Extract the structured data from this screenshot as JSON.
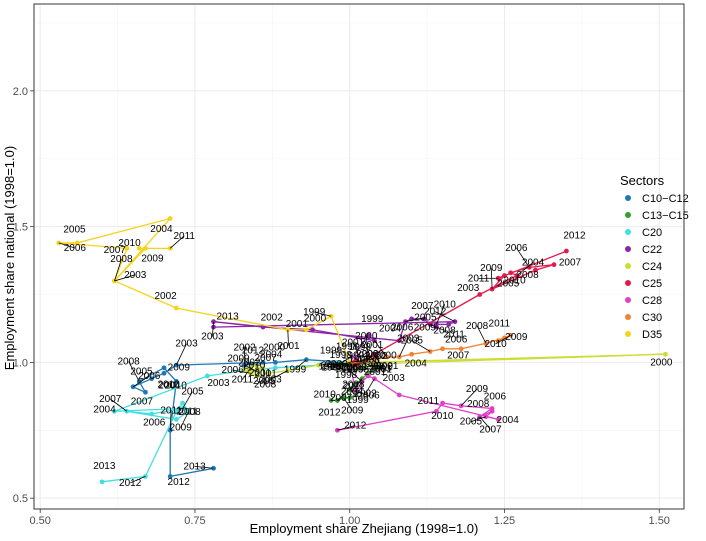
{
  "chart_data": {
    "type": "scatter",
    "title": "",
    "xlabel": "Employment share Zhejiang (1998=1.0)",
    "ylabel": "Employment share national (1998=1.0)",
    "xlim": [
      0.49,
      1.54
    ],
    "ylim": [
      0.46,
      2.32
    ],
    "x_ticks": [
      0.5,
      0.75,
      1.0,
      1.25,
      1.5
    ],
    "x_tick_labels": [
      "0.50",
      "0.75",
      "1.00",
      "1.25",
      "1.50"
    ],
    "y_ticks": [
      0.5,
      1.0,
      1.5,
      2.0
    ],
    "y_tick_labels": [
      "0.5",
      "1.0",
      "1.5",
      "2.0"
    ],
    "grid": true,
    "legend": {
      "title": "Sectors",
      "position": "right"
    },
    "series": [
      {
        "name": "C10−C12",
        "color": "#1f78b4",
        "points": [
          {
            "year": "1998",
            "x": 1.0,
            "y": 1.0
          },
          {
            "year": "1999",
            "x": 0.93,
            "y": 1.01
          },
          {
            "year": "2000",
            "x": 0.88,
            "y": 1.0
          },
          {
            "year": "2001",
            "x": 0.83,
            "y": 0.99
          },
          {
            "year": "2002",
            "x": 0.86,
            "y": 1.0
          },
          {
            "year": "2003",
            "x": 0.72,
            "y": 0.99
          },
          {
            "year": "2004",
            "x": 0.7,
            "y": 0.96
          },
          {
            "year": "2005",
            "x": 0.68,
            "y": 0.94
          },
          {
            "year": "2006",
            "x": 0.65,
            "y": 0.91
          },
          {
            "year": "2007",
            "x": 0.67,
            "y": 0.89
          },
          {
            "year": "2008",
            "x": 0.66,
            "y": 0.93
          },
          {
            "year": "2009",
            "x": 0.7,
            "y": 0.98
          },
          {
            "year": "2010",
            "x": 0.72,
            "y": 0.93
          },
          {
            "year": "2011",
            "x": 0.71,
            "y": 0.75
          },
          {
            "year": "2012",
            "x": 0.71,
            "y": 0.58
          },
          {
            "year": "2013",
            "x": 0.78,
            "y": 0.61
          }
        ]
      },
      {
        "name": "C13−C15",
        "color": "#33a02c",
        "points": [
          {
            "year": "1998",
            "x": 1.0,
            "y": 1.0
          },
          {
            "year": "1999",
            "x": 1.0,
            "y": 0.97
          },
          {
            "year": "2000",
            "x": 1.02,
            "y": 0.98
          },
          {
            "year": "2001",
            "x": 1.04,
            "y": 0.99
          },
          {
            "year": "2002",
            "x": 1.05,
            "y": 0.98
          },
          {
            "year": "2003",
            "x": 1.03,
            "y": 0.96
          },
          {
            "year": "2004",
            "x": 1.02,
            "y": 0.94
          },
          {
            "year": "2005",
            "x": 1.01,
            "y": 0.92
          },
          {
            "year": "2006",
            "x": 1.0,
            "y": 0.9
          },
          {
            "year": "2007",
            "x": 1.01,
            "y": 0.88
          },
          {
            "year": "2008",
            "x": 1.0,
            "y": 0.87
          },
          {
            "year": "2009",
            "x": 0.99,
            "y": 0.87
          },
          {
            "year": "2010",
            "x": 0.98,
            "y": 0.86
          },
          {
            "year": "2011",
            "x": 0.98,
            "y": 0.86
          },
          {
            "year": "2012",
            "x": 0.97,
            "y": 0.86
          }
        ]
      },
      {
        "name": "C20",
        "color": "#40e0e0",
        "points": [
          {
            "year": "1998",
            "x": 1.0,
            "y": 1.0
          },
          {
            "year": "1999",
            "x": 0.98,
            "y": 1.0
          },
          {
            "year": "2000",
            "x": 0.95,
            "y": 0.99
          },
          {
            "year": "2001",
            "x": 0.88,
            "y": 0.98
          },
          {
            "year": "2002",
            "x": 0.83,
            "y": 0.97
          },
          {
            "year": "2003",
            "x": 0.77,
            "y": 0.95
          },
          {
            "year": "2004",
            "x": 0.62,
            "y": 0.82
          },
          {
            "year": "2005",
            "x": 0.73,
            "y": 0.83
          },
          {
            "year": "2006",
            "x": 0.68,
            "y": 0.81
          },
          {
            "year": "2007",
            "x": 0.64,
            "y": 0.82
          },
          {
            "year": "2008",
            "x": 0.72,
            "y": 0.79
          },
          {
            "year": "2009",
            "x": 0.74,
            "y": 0.82
          },
          {
            "year": "2010",
            "x": 0.73,
            "y": 0.85
          },
          {
            "year": "2011",
            "x": 0.72,
            "y": 0.82
          },
          {
            "year": "2012",
            "x": 0.67,
            "y": 0.58
          },
          {
            "year": "2013",
            "x": 0.6,
            "y": 0.56
          }
        ]
      },
      {
        "name": "C22",
        "color": "#8e24aa",
        "points": [
          {
            "year": "1998",
            "x": 1.0,
            "y": 1.0
          },
          {
            "year": "1999",
            "x": 1.03,
            "y": 1.1
          },
          {
            "year": "2000",
            "x": 1.04,
            "y": 1.08
          },
          {
            "year": "2001",
            "x": 0.94,
            "y": 1.12
          },
          {
            "year": "2002",
            "x": 0.86,
            "y": 1.13
          },
          {
            "year": "2003",
            "x": 0.78,
            "y": 1.15
          },
          {
            "year": "2004",
            "x": 1.08,
            "y": 1.08
          },
          {
            "year": "2005",
            "x": 1.09,
            "y": 1.15
          },
          {
            "year": "2006",
            "x": 1.1,
            "y": 1.16
          },
          {
            "year": "2007",
            "x": 1.12,
            "y": 1.16
          },
          {
            "year": "2008",
            "x": 1.13,
            "y": 1.14
          },
          {
            "year": "2009",
            "x": 1.14,
            "y": 1.13
          },
          {
            "year": "2010",
            "x": 1.14,
            "y": 1.14
          },
          {
            "year": "2011",
            "x": 1.16,
            "y": 1.14
          },
          {
            "year": "2012",
            "x": 1.17,
            "y": 1.15
          },
          {
            "year": "2013",
            "x": 0.78,
            "y": 1.13
          }
        ]
      },
      {
        "name": "C24",
        "color": "#ccdd33",
        "points": [
          {
            "year": "1998",
            "x": 1.0,
            "y": 1.0
          },
          {
            "year": "1999",
            "x": 0.98,
            "y": 0.99
          },
          {
            "year": "2000",
            "x": 1.51,
            "y": 1.03
          },
          {
            "year": "2001",
            "x": 1.02,
            "y": 1.0
          },
          {
            "year": "2002",
            "x": 0.95,
            "y": 0.99
          },
          {
            "year": "2003",
            "x": 0.9,
            "y": 0.97
          },
          {
            "year": "2004",
            "x": 0.87,
            "y": 0.96
          },
          {
            "year": "2005",
            "x": 0.85,
            "y": 0.95
          },
          {
            "year": "2006",
            "x": 0.84,
            "y": 0.96
          },
          {
            "year": "2007",
            "x": 0.85,
            "y": 0.97
          },
          {
            "year": "2008",
            "x": 0.86,
            "y": 0.98
          },
          {
            "year": "2009",
            "x": 0.84,
            "y": 0.97
          },
          {
            "year": "2010",
            "x": 0.83,
            "y": 0.97
          },
          {
            "year": "2011",
            "x": 0.84,
            "y": 0.98
          },
          {
            "year": "2012",
            "x": 0.85,
            "y": 0.99
          }
        ]
      },
      {
        "name": "C25",
        "color": "#e6194b",
        "points": [
          {
            "year": "1998",
            "x": 1.0,
            "y": 1.0
          },
          {
            "year": "1999",
            "x": 1.01,
            "y": 1.01
          },
          {
            "year": "2000",
            "x": 1.01,
            "y": 0.99
          },
          {
            "year": "2001",
            "x": 1.03,
            "y": 1.02
          },
          {
            "year": "2002",
            "x": 1.04,
            "y": 1.03
          },
          {
            "year": "2003",
            "x": 1.21,
            "y": 1.25
          },
          {
            "year": "2004",
            "x": 1.27,
            "y": 1.32
          },
          {
            "year": "2005",
            "x": 1.26,
            "y": 1.33
          },
          {
            "year": "2006",
            "x": 1.29,
            "y": 1.35
          },
          {
            "year": "2007",
            "x": 1.33,
            "y": 1.36
          },
          {
            "year": "2008",
            "x": 1.3,
            "y": 1.34
          },
          {
            "year": "2009",
            "x": 1.23,
            "y": 1.27
          },
          {
            "year": "2010",
            "x": 1.25,
            "y": 1.32
          },
          {
            "year": "2011",
            "x": 1.24,
            "y": 1.31
          },
          {
            "year": "2012",
            "x": 1.35,
            "y": 1.41
          }
        ]
      },
      {
        "name": "C28",
        "color": "#e040c8",
        "points": [
          {
            "year": "1998",
            "x": 1.0,
            "y": 1.0
          },
          {
            "year": "1999",
            "x": 1.01,
            "y": 0.89
          },
          {
            "year": "2000",
            "x": 1.02,
            "y": 0.93
          },
          {
            "year": "2001",
            "x": 1.03,
            "y": 0.95
          },
          {
            "year": "2002",
            "x": 1.04,
            "y": 0.94
          },
          {
            "year": "2003",
            "x": 1.08,
            "y": 0.88
          },
          {
            "year": "2004",
            "x": 1.24,
            "y": 0.79
          },
          {
            "year": "2005",
            "x": 1.22,
            "y": 0.8
          },
          {
            "year": "2006",
            "x": 1.23,
            "y": 0.82
          },
          {
            "year": "2007",
            "x": 1.21,
            "y": 0.8
          },
          {
            "year": "2008",
            "x": 1.23,
            "y": 0.83
          },
          {
            "year": "2009",
            "x": 1.18,
            "y": 0.84
          },
          {
            "year": "2010",
            "x": 1.15,
            "y": 0.85
          },
          {
            "year": "2011",
            "x": 1.14,
            "y": 0.82
          },
          {
            "year": "2012",
            "x": 0.98,
            "y": 0.75
          }
        ]
      },
      {
        "name": "C30",
        "color": "#f58231",
        "points": [
          {
            "year": "1998",
            "x": 1.0,
            "y": 1.0
          },
          {
            "year": "1999",
            "x": 1.02,
            "y": 1.0
          },
          {
            "year": "2000",
            "x": 1.03,
            "y": 1.01
          },
          {
            "year": "2001",
            "x": 1.04,
            "y": 1.01
          },
          {
            "year": "2002",
            "x": 1.06,
            "y": 1.02
          },
          {
            "year": "2003",
            "x": 1.08,
            "y": 1.02
          },
          {
            "year": "2004",
            "x": 1.1,
            "y": 1.03
          },
          {
            "year": "2005",
            "x": 1.13,
            "y": 1.04
          },
          {
            "year": "2006",
            "x": 1.15,
            "y": 1.05
          },
          {
            "year": "2007",
            "x": 1.18,
            "y": 1.05
          },
          {
            "year": "2008",
            "x": 1.22,
            "y": 1.07
          },
          {
            "year": "2009",
            "x": 1.25,
            "y": 1.09
          },
          {
            "year": "2010",
            "x": 1.26,
            "y": 1.1
          },
          {
            "year": "2011",
            "x": 1.24,
            "y": 1.08
          }
        ]
      },
      {
        "name": "D35",
        "color": "#f5d31b",
        "points": [
          {
            "year": "1998",
            "x": 1.0,
            "y": 1.0
          },
          {
            "year": "1999",
            "x": 0.97,
            "y": 1.17
          },
          {
            "year": "2000",
            "x": 0.93,
            "y": 1.12
          },
          {
            "year": "2001",
            "x": 0.9,
            "y": 1.12
          },
          {
            "year": "2002",
            "x": 0.72,
            "y": 1.2
          },
          {
            "year": "2003",
            "x": 0.62,
            "y": 1.3
          },
          {
            "year": "2004",
            "x": 0.71,
            "y": 1.53
          },
          {
            "year": "2005",
            "x": 0.56,
            "y": 1.44
          },
          {
            "year": "2006",
            "x": 0.53,
            "y": 1.44
          },
          {
            "year": "2007",
            "x": 0.64,
            "y": 1.42
          },
          {
            "year": "2008",
            "x": 0.62,
            "y": 1.3
          },
          {
            "year": "2009",
            "x": 0.67,
            "y": 1.42
          },
          {
            "year": "2010",
            "x": 0.66,
            "y": 1.42
          },
          {
            "year": "2011",
            "x": 0.71,
            "y": 1.42
          }
        ]
      }
    ]
  }
}
